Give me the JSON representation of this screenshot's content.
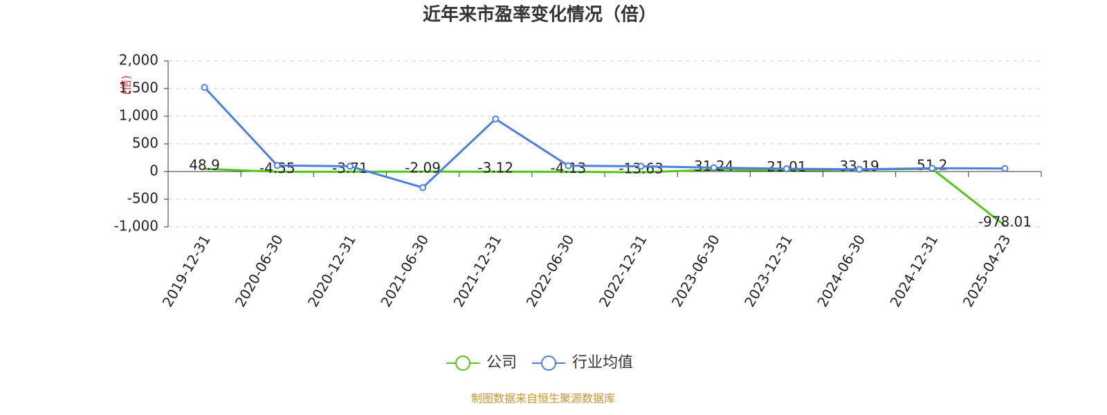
{
  "chart_data": {
    "type": "line",
    "title": "近年来市盈率变化情况（倍）",
    "y_label": "(倍)",
    "source": "制图数据来自恒生聚源数据库",
    "categories": [
      "2019-12-31",
      "2020-06-30",
      "2020-12-31",
      "2021-06-30",
      "2021-12-31",
      "2022-06-30",
      "2022-12-31",
      "2023-06-30",
      "2023-12-31",
      "2024-06-30",
      "2024-12-31",
      "2025-04-23"
    ],
    "series": [
      {
        "name": "公司",
        "color": "#52c41a",
        "marker": false,
        "show_labels": true,
        "values": [
          48.9,
          -4.55,
          -3.71,
          -2.09,
          -3.12,
          -4.13,
          -13.63,
          31.24,
          21.01,
          33.19,
          51.2,
          -978.01
        ]
      },
      {
        "name": "行业均值",
        "color": "#4a7fdc",
        "marker": true,
        "show_labels": false,
        "values": [
          1520,
          110,
          95,
          -290,
          950,
          105,
          95,
          70,
          50,
          40,
          60,
          55
        ]
      }
    ],
    "ylim": [
      -1000,
      2000
    ],
    "yticks": [
      {
        "value": 2000,
        "label": "2,000"
      },
      {
        "value": 1500,
        "label": "1,500"
      },
      {
        "value": 1000,
        "label": "1,000"
      },
      500,
      0,
      -500,
      {
        "value": -1000,
        "label": "-1,000"
      }
    ],
    "grid": true
  }
}
